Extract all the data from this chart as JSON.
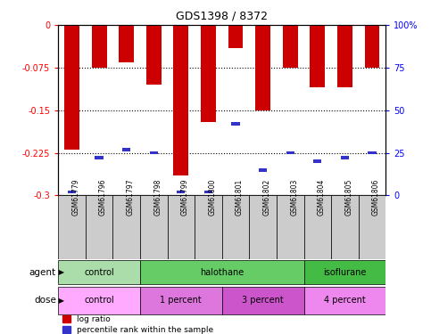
{
  "title": "GDS1398 / 8372",
  "samples": [
    "GSM61779",
    "GSM61796",
    "GSM61797",
    "GSM61798",
    "GSM61799",
    "GSM61800",
    "GSM61801",
    "GSM61802",
    "GSM61803",
    "GSM61804",
    "GSM61805",
    "GSM61806"
  ],
  "log_ratio": [
    -0.22,
    -0.075,
    -0.065,
    -0.105,
    -0.265,
    -0.17,
    -0.04,
    -0.15,
    -0.075,
    -0.11,
    -0.11,
    -0.075
  ],
  "percentile": [
    2,
    22,
    27,
    25,
    2,
    2,
    42,
    15,
    25,
    20,
    22,
    25
  ],
  "ylim_left": [
    -0.3,
    0
  ],
  "ylim_right": [
    0,
    100
  ],
  "yticks_left": [
    -0.3,
    -0.225,
    -0.15,
    -0.075,
    0
  ],
  "yticks_right": [
    0,
    25,
    50,
    75,
    100
  ],
  "bar_color": "#cc0000",
  "blue_color": "#3333cc",
  "agent_groups": [
    {
      "label": "control",
      "start": 0,
      "end": 3,
      "color": "#aaddaa"
    },
    {
      "label": "halothane",
      "start": 3,
      "end": 9,
      "color": "#66cc66"
    },
    {
      "label": "isoflurane",
      "start": 9,
      "end": 12,
      "color": "#44bb44"
    }
  ],
  "dose_groups": [
    {
      "label": "control",
      "start": 0,
      "end": 3,
      "color": "#ffaaff"
    },
    {
      "label": "1 percent",
      "start": 3,
      "end": 6,
      "color": "#dd77dd"
    },
    {
      "label": "3 percent",
      "start": 6,
      "end": 9,
      "color": "#cc55cc"
    },
    {
      "label": "4 percent",
      "start": 9,
      "end": 12,
      "color": "#ee88ee"
    }
  ],
  "legend_items": [
    {
      "label": "log ratio",
      "color": "#cc0000"
    },
    {
      "label": "percentile rank within the sample",
      "color": "#3333cc"
    }
  ],
  "sample_bg": "#cccccc",
  "agent_label": "agent",
  "dose_label": "dose",
  "grid_vals": [
    -0.075,
    -0.15,
    -0.225
  ]
}
